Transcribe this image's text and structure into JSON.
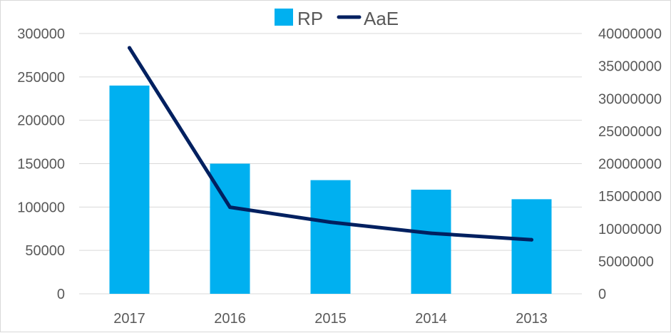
{
  "chart_data": {
    "type": "bar",
    "categories": [
      "2017",
      "2016",
      "2015",
      "2014",
      "2013"
    ],
    "series": [
      {
        "name": "RP",
        "type": "bar",
        "axis": "left",
        "color": "#00b0f0",
        "values": [
          240000,
          150000,
          131000,
          120000,
          109000
        ]
      },
      {
        "name": "AaE",
        "type": "line",
        "axis": "right",
        "color": "#002060",
        "values": [
          37800000,
          13300000,
          11000000,
          9300000,
          8300000
        ]
      }
    ],
    "y_left": {
      "ylim": [
        0,
        300000
      ],
      "ticks": [
        "0",
        "50000",
        "100000",
        "150000",
        "200000",
        "250000",
        "300000"
      ]
    },
    "y_right": {
      "ylim": [
        0,
        40000000
      ],
      "ticks": [
        "0",
        "5000000",
        "10000000",
        "15000000",
        "20000000",
        "25000000",
        "30000000",
        "35000000",
        "40000000"
      ]
    },
    "grid": true,
    "legend": {
      "position": "top",
      "items": [
        {
          "name": "RP",
          "marker": "square",
          "color": "#00b0f0"
        },
        {
          "name": "AaE",
          "marker": "line",
          "color": "#002060"
        }
      ]
    }
  }
}
